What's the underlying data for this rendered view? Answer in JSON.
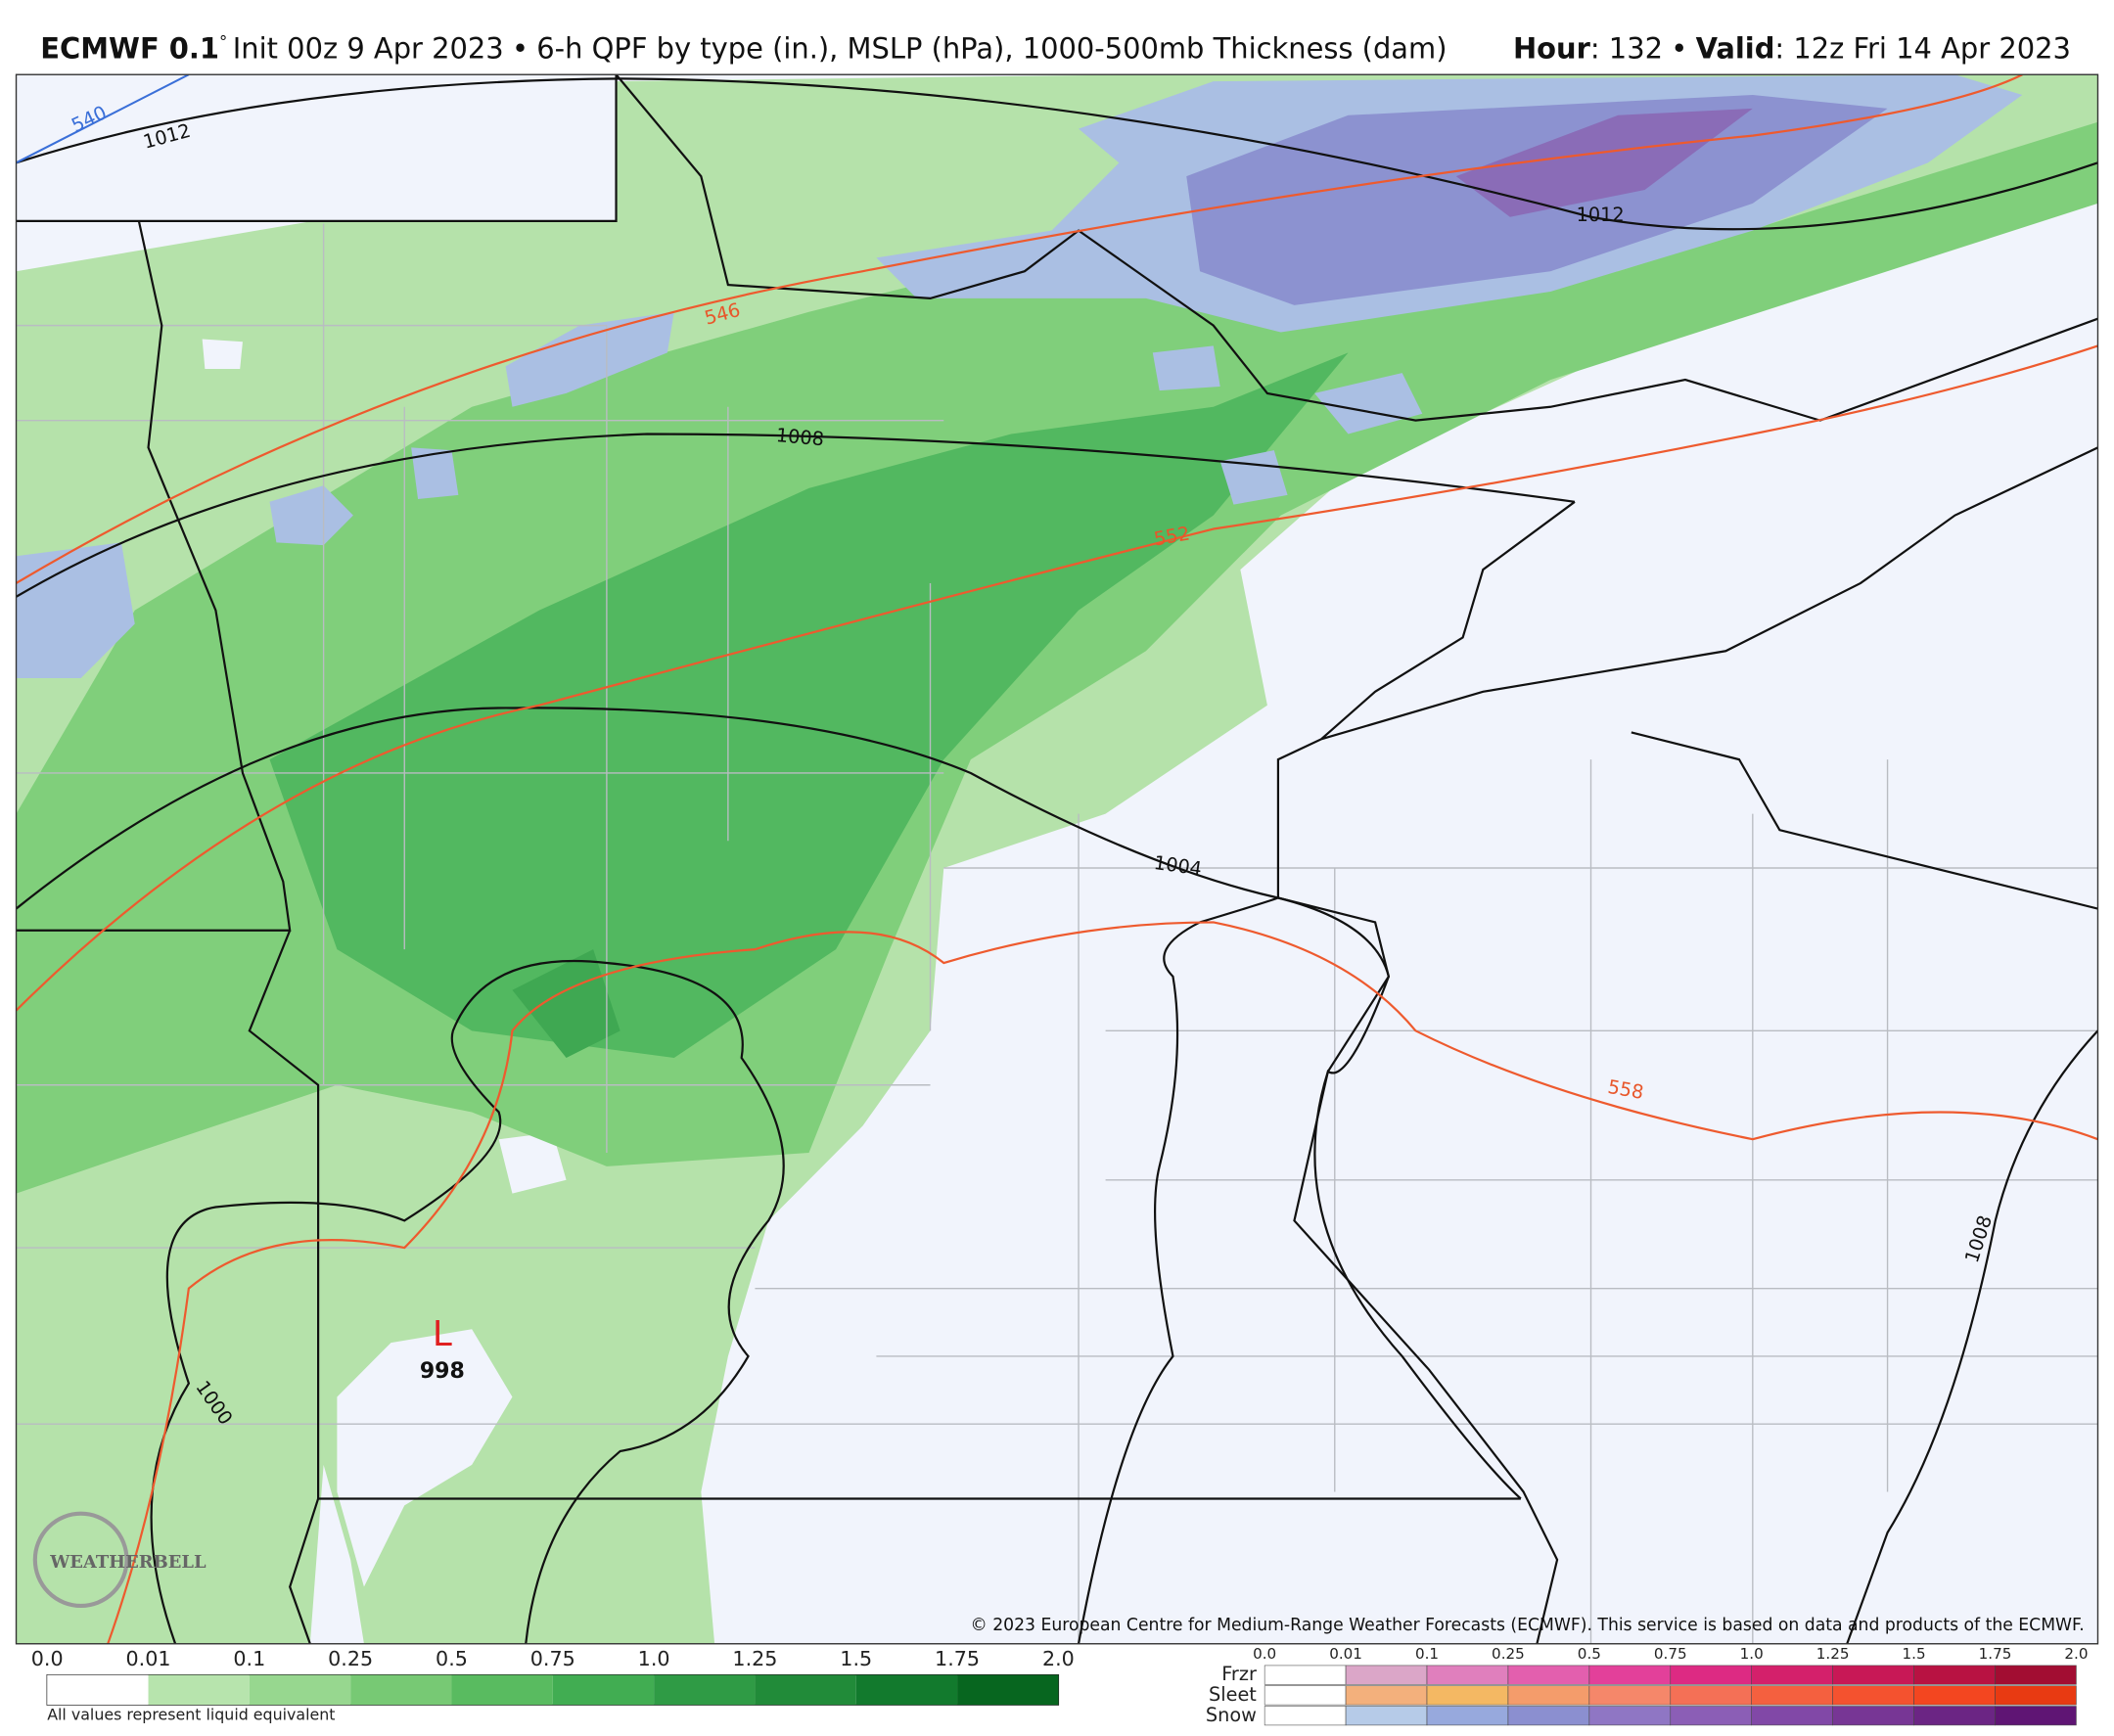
{
  "header": {
    "model": "ECMWF 0.1",
    "degree": "°",
    "init": "Init 00z 9 Apr 2023",
    "separator": "•",
    "product": "6-h QPF by type (in.), MSLP (hPa), 1000-500mb Thickness (dam)",
    "hour_label": "Hour",
    "hour": ": 132",
    "valid_label": "Valid",
    "valid": ": 12z Fri 14 Apr 2023"
  },
  "map": {
    "isobar_labels": [
      "1012",
      "1012",
      "1008",
      "1004",
      "1000",
      "1008"
    ],
    "thickness_labels": [
      "540",
      "546",
      "552",
      "558"
    ],
    "low": {
      "symbol": "L",
      "pressure": "998"
    },
    "watermark": "WEATHERBELL",
    "copyright": "© 2023 European Centre for Medium-Range Weather Forecasts (ECMWF). This service is based on data and products of the ECMWF."
  },
  "legend": {
    "ticks": [
      "0.0",
      "0.01",
      "0.1",
      "0.25",
      "0.5",
      "0.75",
      "1.0",
      "1.25",
      "1.5",
      "1.75",
      "2.0"
    ],
    "note": "All values represent liquid equivalent"
  },
  "type_legend": {
    "ticks": [
      "0.0",
      "0.01",
      "0.1",
      "0.25",
      "0.5",
      "0.75",
      "1.0",
      "1.25",
      "1.5",
      "1.75",
      "2.0"
    ],
    "types": [
      "Frzr",
      "Sleet",
      "Snow"
    ]
  }
}
